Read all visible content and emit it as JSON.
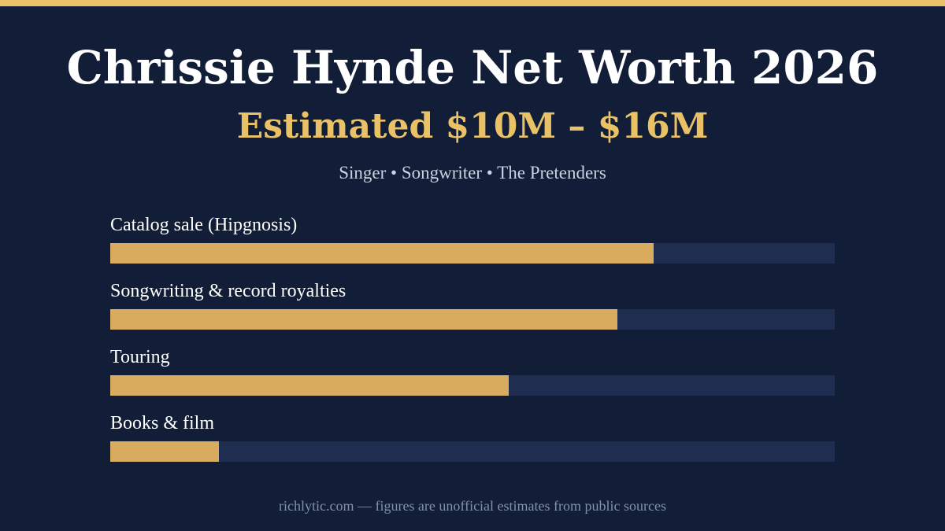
{
  "header": {
    "title": "Chrissie Hynde Net Worth 2026",
    "subtitle": "Estimated $10M – $16M",
    "tagline": "Singer • Songwriter • The Pretenders"
  },
  "footer": {
    "text": "richlytic.com — figures are unofficial estimates from public sources"
  },
  "colors": {
    "background": "#121e37",
    "accent": "#e9c268",
    "bar_fill": "#d8ab5f",
    "bar_track": "#1f2d50"
  },
  "chart_data": {
    "type": "bar",
    "orientation": "horizontal",
    "title": "",
    "xlabel": "",
    "ylabel": "",
    "categories": [
      "Catalog sale (Hipgnosis)",
      "Songwriting & record royalties",
      "Touring",
      "Books & film"
    ],
    "values": [
      0.75,
      0.7,
      0.55,
      0.15
    ],
    "xlim": [
      0,
      1
    ],
    "grid": false,
    "legend": "none"
  }
}
